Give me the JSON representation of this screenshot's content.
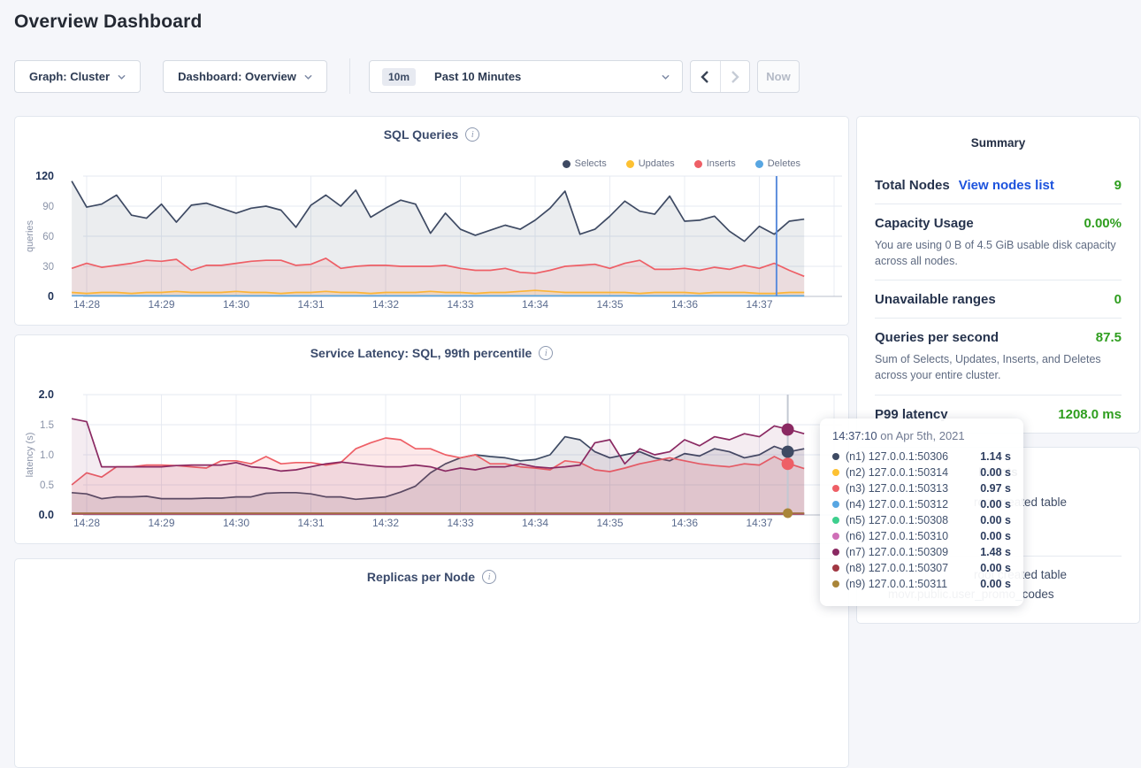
{
  "header": {
    "title": "Overview Dashboard"
  },
  "controls": {
    "graph_dropdown": "Graph: Cluster",
    "dashboard_dropdown": "Dashboard: Overview",
    "time_badge": "10m",
    "time_label": "Past 10 Minutes",
    "now_label": "Now"
  },
  "summary": {
    "title": "Summary",
    "total_nodes_label": "Total Nodes",
    "view_nodes_link": "View nodes list",
    "total_nodes_value": "9",
    "capacity_label": "Capacity Usage",
    "capacity_value": "0.00%",
    "capacity_desc": "You are using 0 B of 4.5 GiB usable disk capacity across all nodes.",
    "unavailable_label": "Unavailable ranges",
    "unavailable_value": "0",
    "qps_label": "Queries per second",
    "qps_value": "87.5",
    "qps_desc": "Sum of Selects, Updates, Inserts, and Deletes across your entire cluster.",
    "p99_label": "P99 latency",
    "p99_value": "1208.0 ms"
  },
  "events": {
    "title": "Events",
    "items": [
      {
        "line1": "root created table",
        "line2": ""
      },
      {
        "line1": "root created table",
        "line2": "movr.public.user_promo_codes"
      }
    ]
  },
  "tooltip": {
    "time": "14:37:10",
    "date": " on Apr 5th, 2021",
    "rows": [
      {
        "dot": "#3e4a63",
        "label": "(n1) 127.0.0.1:50306",
        "value": "1.14 s"
      },
      {
        "dot": "#fdc132",
        "label": "(n2) 127.0.0.1:50314",
        "value": "0.00 s"
      },
      {
        "dot": "#ee5f66",
        "label": "(n3) 127.0.0.1:50313",
        "value": "0.97 s"
      },
      {
        "dot": "#58a6e2",
        "label": "(n4) 127.0.0.1:50312",
        "value": "0.00 s"
      },
      {
        "dot": "#3ecf8e",
        "label": "(n5) 127.0.0.1:50308",
        "value": "0.00 s"
      },
      {
        "dot": "#cf6fb7",
        "label": "(n6) 127.0.0.1:50310",
        "value": "0.00 s"
      },
      {
        "dot": "#8a2962",
        "label": "(n7) 127.0.0.1:50309",
        "value": "1.48 s"
      },
      {
        "dot": "#a13843",
        "label": "(n8) 127.0.0.1:50307",
        "value": "0.00 s"
      },
      {
        "dot": "#a98539",
        "label": "(n9) 127.0.0.1:50311",
        "value": "0.00 s"
      }
    ]
  },
  "chart_data": [
    {
      "id": "sql",
      "type": "area",
      "title": "SQL Queries",
      "ylabel": "queries",
      "ylim": [
        0,
        120
      ],
      "y_ticks": [
        "0",
        "30",
        "60",
        "90",
        "120"
      ],
      "x_ticks": [
        "14:28",
        "14:29",
        "14:30",
        "14:31",
        "14:32",
        "14:33",
        "14:34",
        "14:35",
        "14:36",
        "14:37"
      ],
      "x_start": -0.2,
      "x_step": 0.2,
      "legend_visible": true,
      "hover": {
        "x_min": 9.23,
        "color": "#5e8edc",
        "dots": []
      },
      "series": [
        {
          "name": "Selects",
          "color": "#3e4a63",
          "fill": 0.1,
          "values": [
            115,
            89,
            92,
            101,
            81,
            78,
            92,
            74,
            91,
            93,
            88,
            83,
            88,
            90,
            86,
            69,
            91,
            101,
            90,
            106,
            79,
            88,
            96,
            92,
            63,
            83,
            67,
            61,
            66,
            71,
            67,
            76,
            88,
            105,
            62,
            67,
            80,
            95,
            85,
            82,
            100,
            75,
            76,
            80,
            65,
            55,
            70,
            62,
            75,
            77
          ]
        },
        {
          "name": "Updates",
          "color": "#fdc132",
          "fill": 0.15,
          "values": [
            4,
            3,
            4,
            4,
            3,
            4,
            4,
            5,
            4,
            4,
            4,
            5,
            4,
            4,
            3,
            4,
            4,
            5,
            4,
            4,
            3,
            4,
            4,
            4,
            5,
            4,
            4,
            3,
            4,
            4,
            5,
            6,
            5,
            4,
            4,
            4,
            4,
            4,
            3,
            4,
            4,
            4,
            3,
            4,
            4,
            4,
            3,
            3,
            4,
            4
          ]
        },
        {
          "name": "Inserts",
          "color": "#ee5f66",
          "fill": 0.12,
          "values": [
            28,
            33,
            29,
            31,
            33,
            36,
            35,
            37,
            26,
            31,
            31,
            33,
            35,
            36,
            36,
            31,
            32,
            38,
            28,
            30,
            31,
            31,
            30,
            30,
            30,
            31,
            28,
            26,
            26,
            28,
            24,
            23,
            26,
            30,
            31,
            32,
            28,
            33,
            36,
            27,
            27,
            28,
            26,
            29,
            27,
            31,
            28,
            33,
            26,
            20
          ]
        },
        {
          "name": "Deletes",
          "color": "#58a6e2",
          "fill": 0,
          "values": {
            "flat": 0.6
          }
        }
      ]
    },
    {
      "id": "latency",
      "type": "area",
      "title": "Service Latency: SQL, 99th percentile",
      "ylabel": "latency (s)",
      "ylim": [
        0,
        2
      ],
      "y_ticks": [
        "0.0",
        "0.5",
        "1.0",
        "1.5",
        "2.0"
      ],
      "x_ticks": [
        "14:28",
        "14:29",
        "14:30",
        "14:31",
        "14:32",
        "14:33",
        "14:34",
        "14:35",
        "14:36",
        "14:37"
      ],
      "x_start": -0.2,
      "x_step": 0.2,
      "legend_visible": false,
      "hover": {
        "x_min": 9.38,
        "color": "#c3c8d2",
        "dots": [
          {
            "series": "n7",
            "r": 7
          },
          {
            "series": "n1",
            "r": 7
          },
          {
            "series": "n3",
            "r": 7
          },
          {
            "series": "n9",
            "r": 5.5
          }
        ]
      },
      "series": [
        {
          "name": "n2",
          "color": "#fdc132",
          "fill": 0,
          "values": {
            "flat": 0.02
          }
        },
        {
          "name": "n4",
          "color": "#58a6e2",
          "fill": 0,
          "values": {
            "flat": 0.025
          }
        },
        {
          "name": "n5",
          "color": "#3ecf8e",
          "fill": 0,
          "values": {
            "flat": 0.02
          }
        },
        {
          "name": "n6",
          "color": "#cf6fb7",
          "fill": 0,
          "values": {
            "flat": 0.015
          }
        },
        {
          "name": "n8",
          "color": "#a13843",
          "fill": 0,
          "values": {
            "flat": 0.02
          }
        },
        {
          "name": "n9",
          "color": "#a98539",
          "fill": 0,
          "values": {
            "flat": 0.03
          }
        },
        {
          "name": "n1",
          "color": "#3e4a63",
          "fill": 0.12,
          "values": [
            0.37,
            0.35,
            0.27,
            0.3,
            0.3,
            0.31,
            0.27,
            0.27,
            0.27,
            0.28,
            0.28,
            0.3,
            0.3,
            0.36,
            0.37,
            0.37,
            0.35,
            0.3,
            0.3,
            0.26,
            0.28,
            0.3,
            0.38,
            0.48,
            0.7,
            0.85,
            0.95,
            1.0,
            0.97,
            0.95,
            0.9,
            0.92,
            1.0,
            1.3,
            1.25,
            1.05,
            0.95,
            1.0,
            1.05,
            0.95,
            0.9,
            1.02,
            0.98,
            1.1,
            1.05,
            0.95,
            1.0,
            1.14,
            1.05,
            1.1
          ]
        },
        {
          "name": "n3",
          "color": "#ee5f66",
          "fill": 0.14,
          "values": [
            0.5,
            0.7,
            0.63,
            0.8,
            0.8,
            0.83,
            0.83,
            0.82,
            0.8,
            0.78,
            0.9,
            0.9,
            0.85,
            0.97,
            0.85,
            0.87,
            0.87,
            0.83,
            0.87,
            1.1,
            1.2,
            1.28,
            1.25,
            1.1,
            1.1,
            1.0,
            0.95,
            1.0,
            0.85,
            0.85,
            0.8,
            0.78,
            0.75,
            0.9,
            0.87,
            0.75,
            0.72,
            0.78,
            0.85,
            0.9,
            0.95,
            0.9,
            0.85,
            0.82,
            0.8,
            0.85,
            0.83,
            0.97,
            0.85,
            0.77
          ]
        },
        {
          "name": "n7",
          "color": "#8a2962",
          "fill": 0.09,
          "values": [
            1.6,
            1.55,
            0.8,
            0.8,
            0.8,
            0.8,
            0.8,
            0.82,
            0.83,
            0.83,
            0.83,
            0.87,
            0.8,
            0.78,
            0.73,
            0.75,
            0.8,
            0.85,
            0.88,
            0.85,
            0.82,
            0.8,
            0.8,
            0.83,
            0.8,
            0.73,
            0.78,
            0.75,
            0.8,
            0.8,
            0.85,
            0.8,
            0.78,
            0.8,
            0.83,
            1.2,
            1.25,
            0.85,
            1.1,
            1.0,
            1.05,
            1.25,
            1.15,
            1.3,
            1.25,
            1.35,
            1.3,
            1.48,
            1.42,
            1.35
          ]
        }
      ]
    },
    {
      "id": "replicas",
      "type": "area",
      "title": "Replicas per Node",
      "legend_visible": false,
      "series": []
    }
  ]
}
